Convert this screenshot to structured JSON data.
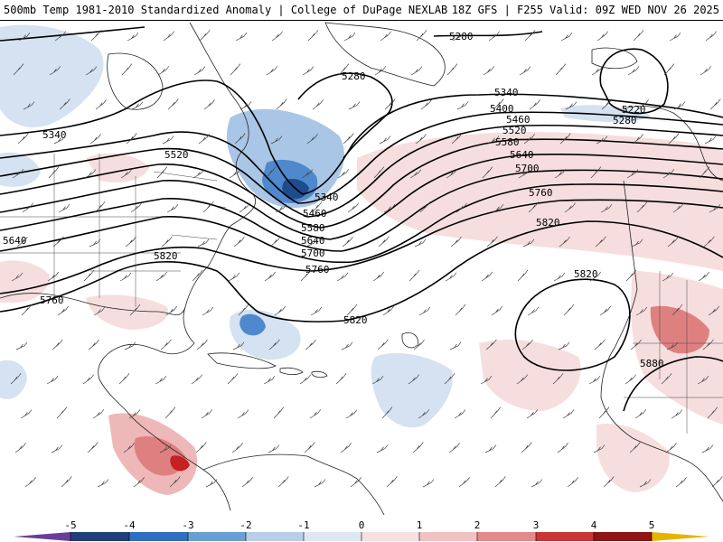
{
  "header": {
    "title": "500mb Temp 1981-2010 Standardized Anomaly | College of DuPage NEXLAB",
    "run": "18Z GFS | F255 Valid: 09Z WED NOV 26 2025"
  },
  "contour_labels": [
    {
      "id": "c5280a",
      "text": "5280"
    },
    {
      "id": "c5280b",
      "text": "5280"
    },
    {
      "id": "c5280c",
      "text": "5280"
    },
    {
      "id": "c5220",
      "text": "5220"
    },
    {
      "id": "c5340a",
      "text": "5340"
    },
    {
      "id": "c5340b",
      "text": "5340"
    },
    {
      "id": "c5340c",
      "text": "5340"
    },
    {
      "id": "c5400",
      "text": "5400"
    },
    {
      "id": "c5460a",
      "text": "5460"
    },
    {
      "id": "c5460b",
      "text": "5460"
    },
    {
      "id": "c5520a",
      "text": "5520"
    },
    {
      "id": "c5520b",
      "text": "5520"
    },
    {
      "id": "c5580a",
      "text": "5580"
    },
    {
      "id": "c5580b",
      "text": "5580"
    },
    {
      "id": "c5640a",
      "text": "5640"
    },
    {
      "id": "c5640b",
      "text": "5640"
    },
    {
      "id": "c5640c",
      "text": "5640"
    },
    {
      "id": "c5700a",
      "text": "5700"
    },
    {
      "id": "c5700b",
      "text": "5700"
    },
    {
      "id": "c5760a",
      "text": "5760"
    },
    {
      "id": "c5760b",
      "text": "5760"
    },
    {
      "id": "c5760c",
      "text": "5760"
    },
    {
      "id": "c5820a",
      "text": "5820"
    },
    {
      "id": "c5820b",
      "text": "5820"
    },
    {
      "id": "c5820c",
      "text": "5820"
    },
    {
      "id": "c5820d",
      "text": "5820"
    },
    {
      "id": "c5880",
      "text": "5880"
    }
  ],
  "legend": {
    "ticks": [
      "-5",
      "-4",
      "-3",
      "-2",
      "-1",
      "0",
      "1",
      "2",
      "3",
      "4",
      "5"
    ],
    "colors": {
      "neg5": "#6a3d9a",
      "neg4": "#1f3f7a",
      "neg3": "#2f6fc0",
      "neg2": "#6a9fd6",
      "neg1": "#b8cfe8",
      "neg0": "#dde8f3",
      "pos0": "#f7e0e0",
      "pos1": "#f2c2c2",
      "pos2": "#e38a8a",
      "pos3": "#c93535",
      "pos4": "#8e1515",
      "pos5": "#e6b400"
    }
  },
  "colors": {
    "cold_light": "#d4e2f1",
    "cold_mid": "#a9c6e6",
    "cold_strong": "#4f88cc",
    "cold_deep": "#1f4c8c",
    "warm_light": "#f7dede",
    "warm_mid": "#eeb8b8",
    "warm_strong": "#df8080",
    "warm_deep": "#c62020"
  }
}
